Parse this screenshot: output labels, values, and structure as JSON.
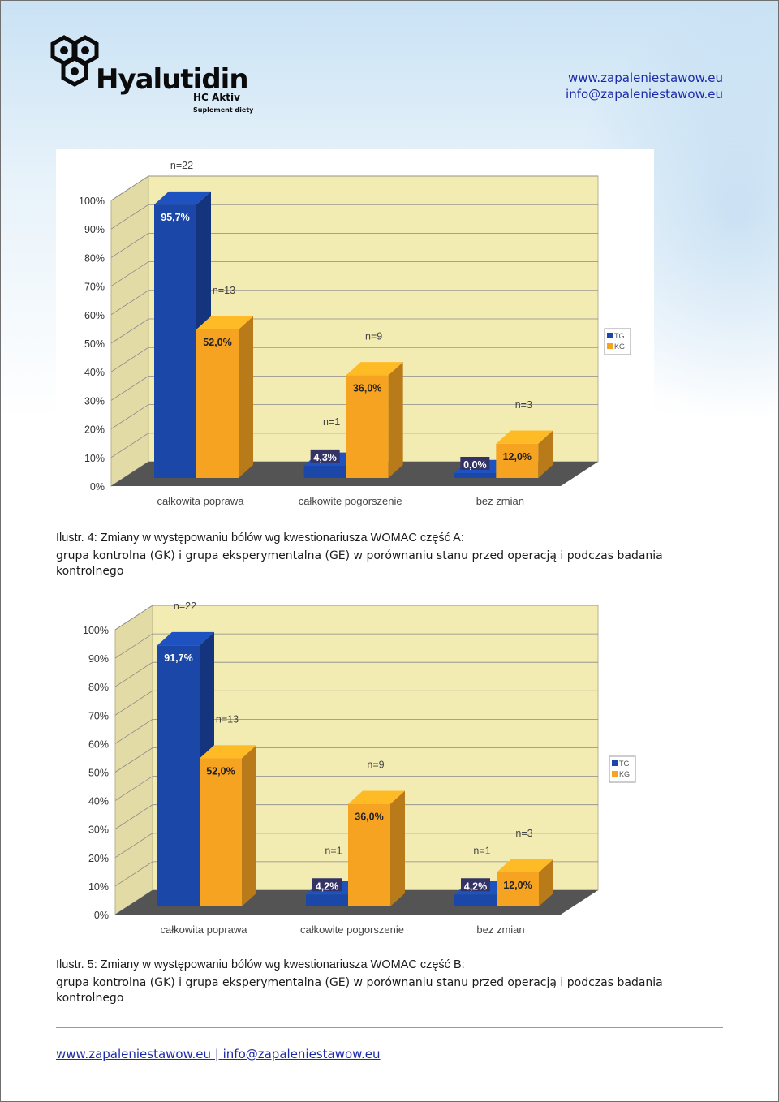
{
  "header": {
    "brand_name": "Hyalutidin",
    "brand_sub": "HC Aktiv",
    "brand_tagline": "Suplement diety",
    "website": "www.zapaleniestawow.eu",
    "email": "info@zapaleniestawow.eu"
  },
  "colors": {
    "tg_blue": "#1a47a8",
    "kg_orange": "#f6a321",
    "wall": "#f3ecb2",
    "floor": "#545454",
    "link": "#1d2aa8"
  },
  "chart_data": [
    {
      "type": "bar",
      "categories": [
        "całkowita poprawa",
        "całkowite pogorszenie",
        "bez zmian"
      ],
      "y_ticks": [
        "0%",
        "10%",
        "20%",
        "30%",
        "40%",
        "50%",
        "60%",
        "70%",
        "80%",
        "90%",
        "100%"
      ],
      "ylim": [
        0,
        100
      ],
      "legend": [
        "TG",
        "KG"
      ],
      "legend_position": "right",
      "grid": true,
      "series": [
        {
          "name": "TG",
          "values": [
            95.7,
            4.3,
            0.0
          ],
          "labels": [
            "95,7%",
            "4,3%",
            "0,0%"
          ],
          "n_labels": [
            "n=22",
            "n=1",
            ""
          ]
        },
        {
          "name": "KG",
          "values": [
            52.0,
            36.0,
            12.0
          ],
          "labels": [
            "52,0%",
            "36,0%",
            "12,0%"
          ],
          "n_labels": [
            "n=13",
            "n=9",
            "n=3"
          ]
        }
      ]
    },
    {
      "type": "bar",
      "categories": [
        "całkowita poprawa",
        "całkowite pogorszenie",
        "bez zmian"
      ],
      "y_ticks": [
        "0%",
        "10%",
        "20%",
        "30%",
        "40%",
        "50%",
        "60%",
        "70%",
        "80%",
        "90%",
        "100%"
      ],
      "ylim": [
        0,
        100
      ],
      "legend": [
        "TG",
        "KG"
      ],
      "legend_position": "right",
      "grid": true,
      "series": [
        {
          "name": "TG",
          "values": [
            91.7,
            4.2,
            4.2
          ],
          "labels": [
            "91,7%",
            "4,2%",
            "4,2%"
          ],
          "n_labels": [
            "n=22",
            "n=1",
            "n=1"
          ]
        },
        {
          "name": "KG",
          "values": [
            52.0,
            36.0,
            12.0
          ],
          "labels": [
            "52,0%",
            "36,0%",
            "12,0%"
          ],
          "n_labels": [
            "n=13",
            "n=9",
            "n=3"
          ]
        }
      ]
    }
  ],
  "captions": [
    {
      "line1": "Ilustr. 4: Zmiany w występowaniu bólów wg kwestionariusza WOMAC część A:",
      "line2": "grupa kontrolna (GK) i grupa eksperymentalna (GE) w porównaniu stanu przed operacją i podczas badania",
      "line3": "kontrolnego"
    },
    {
      "line1": "Ilustr. 5: Zmiany w występowaniu bólów wg kwestionariusza WOMAC część B:",
      "line2": "grupa kontrolna (GK) i grupa eksperymentalna (GE) w porównaniu stanu przed operacją i podczas badania",
      "line3": "kontrolnego"
    }
  ],
  "footer": {
    "website": "www.zapaleniestawow.eu",
    "separator": " | ",
    "email": "info@zapaleniestawow.eu"
  }
}
